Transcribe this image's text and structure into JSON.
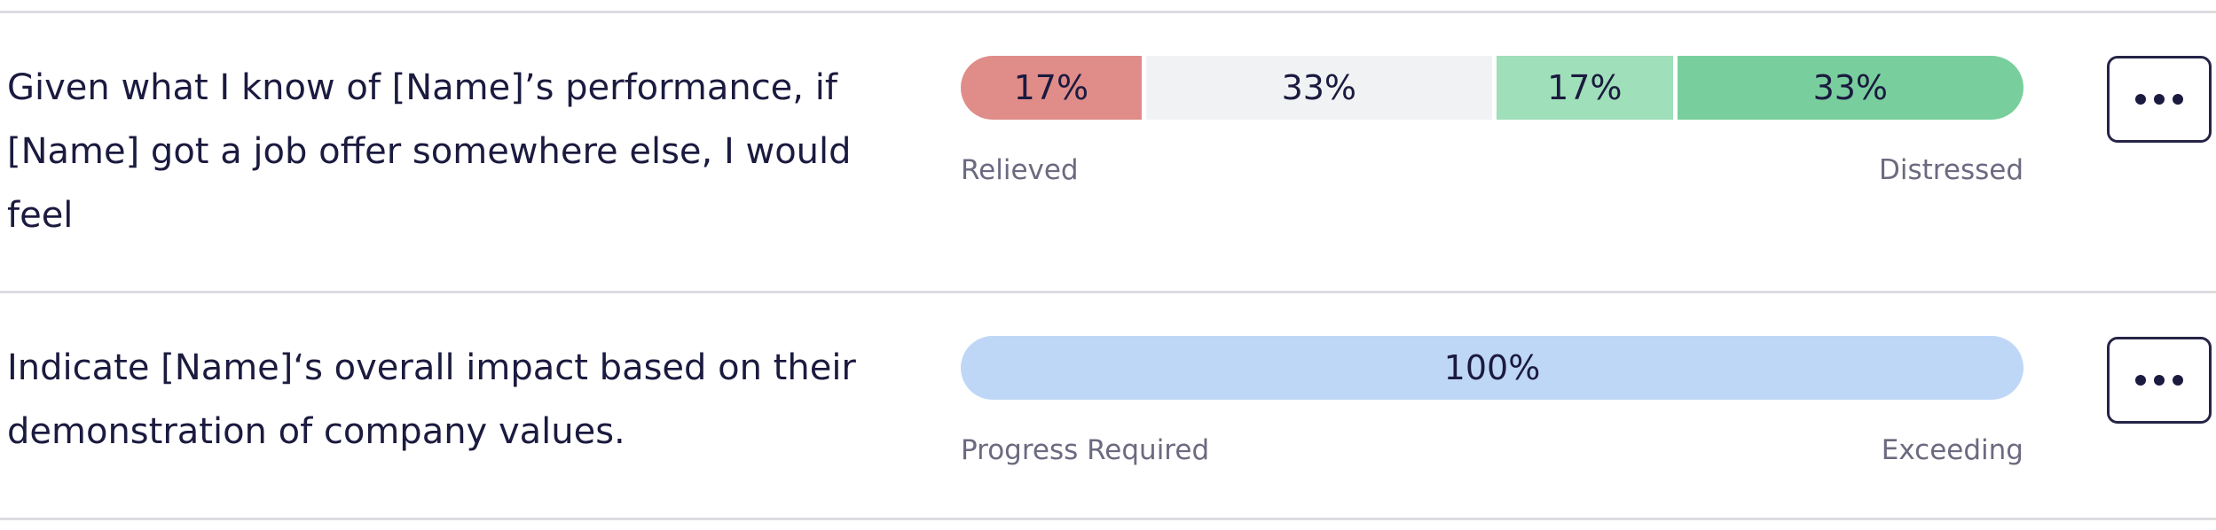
{
  "questions": [
    {
      "text": "Given what I know of [Name]’s performance, if [Name] got a job offer somewhere else, I would feel",
      "segments": [
        {
          "label": "17%",
          "value": 17,
          "color": "#e08c89"
        },
        {
          "label": "33%",
          "value": 33,
          "color": "#f1f2f4"
        },
        {
          "label": "17%",
          "value": 17,
          "color": "#9fdfb9"
        },
        {
          "label": "33%",
          "value": 33,
          "color": "#78cf9d"
        }
      ],
      "scale_left": "Relieved",
      "scale_right": "Distressed",
      "menu_icon": "more-horizontal-icon"
    },
    {
      "text": "Indicate [Name]‘s overall impact based on their demonstration of company values.",
      "segments": [
        {
          "label": "100%",
          "value": 100,
          "color": "#bfd7f7"
        }
      ],
      "scale_left": "Progress Required",
      "scale_right": "Exceeding",
      "menu_icon": "more-horizontal-icon"
    }
  ]
}
